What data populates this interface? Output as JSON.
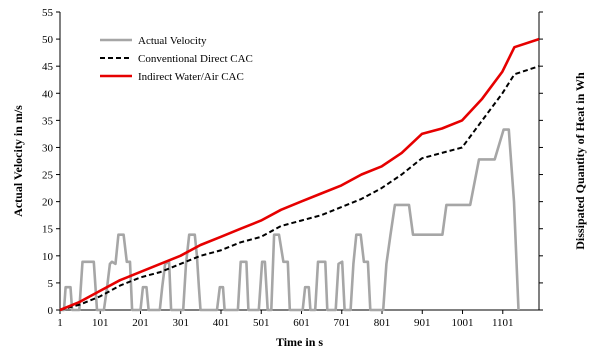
{
  "chart_data": {
    "type": "line",
    "title": "",
    "xlabel": "Time in s",
    "ylabel": "Actual Velocity in m/s",
    "y2label": "Dissipated Quantity of Heat in Wh",
    "xlim": [
      1,
      1191
    ],
    "ylim": [
      0,
      55
    ],
    "x_ticks": [
      1,
      101,
      201,
      301,
      401,
      501,
      601,
      701,
      801,
      901,
      1001,
      1101
    ],
    "y_ticks": [
      0,
      5,
      10,
      15,
      20,
      25,
      30,
      35,
      40,
      45,
      50,
      55
    ],
    "grid": false,
    "legend_position": "top-left",
    "series": [
      {
        "name": "Actual Velocity",
        "color": "#a6a6a6",
        "style": "solid",
        "points": [
          [
            1,
            0
          ],
          [
            11,
            0
          ],
          [
            15,
            4.2
          ],
          [
            27,
            4.2
          ],
          [
            31,
            0
          ],
          [
            49,
            0
          ],
          [
            57,
            8.9
          ],
          [
            85,
            8.9
          ],
          [
            93,
            0
          ],
          [
            110,
            0
          ],
          [
            118,
            4.2
          ],
          [
            125,
            8.5
          ],
          [
            130,
            8.9
          ],
          [
            139,
            8.5
          ],
          [
            146,
            13.9
          ],
          [
            159,
            13.9
          ],
          [
            167,
            8.9
          ],
          [
            175,
            8.9
          ],
          [
            180,
            0
          ],
          [
            201,
            0
          ],
          [
            207,
            4.2
          ],
          [
            216,
            4.2
          ],
          [
            221,
            0
          ],
          [
            249,
            0
          ],
          [
            255,
            4.2
          ],
          [
            262,
            8.5
          ],
          [
            272,
            8.9
          ],
          [
            277,
            0
          ],
          [
            307,
            0
          ],
          [
            314,
            8.5
          ],
          [
            322,
            13.9
          ],
          [
            336,
            13.9
          ],
          [
            341,
            10
          ],
          [
            346,
            4.2
          ],
          [
            350,
            0
          ],
          [
            391,
            0
          ],
          [
            398,
            4.2
          ],
          [
            406,
            4.2
          ],
          [
            410,
            0
          ],
          [
            443,
            0
          ],
          [
            450,
            8.9
          ],
          [
            464,
            8.9
          ],
          [
            469,
            0
          ],
          [
            495,
            0
          ],
          [
            503,
            8.9
          ],
          [
            510,
            8.9
          ],
          [
            517,
            0
          ],
          [
            526,
            0
          ],
          [
            533,
            13.9
          ],
          [
            545,
            13.9
          ],
          [
            556,
            8.9
          ],
          [
            567,
            8.9
          ],
          [
            572,
            0
          ],
          [
            604,
            0
          ],
          [
            610,
            4.2
          ],
          [
            619,
            4.2
          ],
          [
            623,
            0
          ],
          [
            635,
            0
          ],
          [
            642,
            8.9
          ],
          [
            660,
            8.9
          ],
          [
            665,
            0
          ],
          [
            686,
            0
          ],
          [
            693,
            8.5
          ],
          [
            702,
            8.9
          ],
          [
            708,
            0
          ],
          [
            723,
            0
          ],
          [
            730,
            8.5
          ],
          [
            737,
            13.9
          ],
          [
            748,
            13.9
          ],
          [
            756,
            8.9
          ],
          [
            766,
            8.9
          ],
          [
            772,
            0
          ],
          [
            804,
            0
          ],
          [
            812,
            8.5
          ],
          [
            822,
            13.9
          ],
          [
            833,
            19.4
          ],
          [
            868,
            19.4
          ],
          [
            878,
            13.9
          ],
          [
            951,
            13.9
          ],
          [
            961,
            19.4
          ],
          [
            1020,
            19.4
          ],
          [
            1042,
            27.8
          ],
          [
            1081,
            27.8
          ],
          [
            1103,
            33.3
          ],
          [
            1116,
            33.3
          ],
          [
            1129,
            20
          ],
          [
            1140,
            0
          ]
        ]
      },
      {
        "name": "Conventional Direct CAC",
        "color": "#000000",
        "style": "dashed",
        "points": [
          [
            1,
            0
          ],
          [
            50,
            1
          ],
          [
            100,
            2.5
          ],
          [
            150,
            4.5
          ],
          [
            200,
            6
          ],
          [
            250,
            7
          ],
          [
            300,
            8.5
          ],
          [
            350,
            10
          ],
          [
            400,
            11
          ],
          [
            450,
            12.5
          ],
          [
            500,
            13.5
          ],
          [
            550,
            15.5
          ],
          [
            600,
            16.5
          ],
          [
            650,
            17.5
          ],
          [
            700,
            19
          ],
          [
            750,
            20.5
          ],
          [
            800,
            22.5
          ],
          [
            850,
            25
          ],
          [
            900,
            28
          ],
          [
            950,
            29
          ],
          [
            1000,
            30
          ],
          [
            1050,
            35
          ],
          [
            1100,
            40
          ],
          [
            1130,
            43.5
          ],
          [
            1191,
            45
          ]
        ]
      },
      {
        "name": "Indirect Water/Air CAC",
        "color": "#e60000",
        "style": "solid",
        "points": [
          [
            1,
            0
          ],
          [
            50,
            1.5
          ],
          [
            100,
            3.5
          ],
          [
            150,
            5.5
          ],
          [
            200,
            7
          ],
          [
            250,
            8.5
          ],
          [
            300,
            10
          ],
          [
            350,
            12
          ],
          [
            400,
            13.5
          ],
          [
            450,
            15
          ],
          [
            500,
            16.5
          ],
          [
            550,
            18.5
          ],
          [
            600,
            20
          ],
          [
            650,
            21.5
          ],
          [
            700,
            23
          ],
          [
            750,
            25
          ],
          [
            800,
            26.5
          ],
          [
            850,
            29
          ],
          [
            900,
            32.5
          ],
          [
            950,
            33.5
          ],
          [
            1000,
            35
          ],
          [
            1050,
            39
          ],
          [
            1100,
            44
          ],
          [
            1130,
            48.5
          ],
          [
            1191,
            50
          ]
        ]
      }
    ]
  }
}
